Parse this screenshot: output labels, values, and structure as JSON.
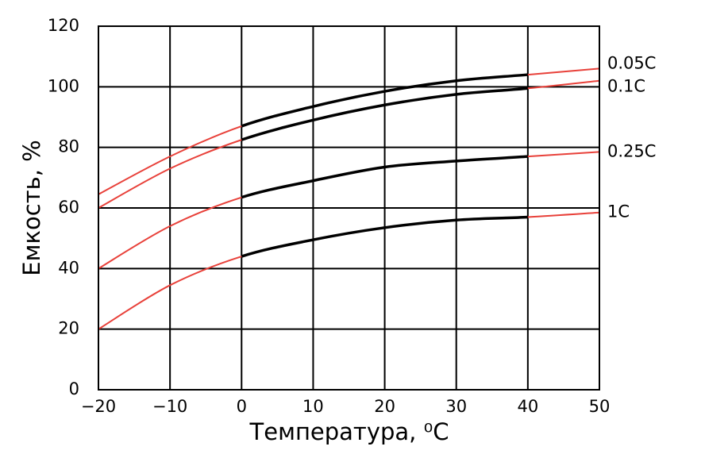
{
  "chart_data": {
    "type": "line",
    "xlabel": "Температура, ⁰C",
    "ylabel": "Емкость, %",
    "x": [
      -20,
      -10,
      0,
      10,
      20,
      30,
      40,
      50
    ],
    "xlim": [
      -20,
      50
    ],
    "xticks": [
      {
        "value": -20,
        "label": "−20"
      },
      {
        "value": -10,
        "label": "−10"
      },
      0,
      10,
      20,
      30,
      40,
      50
    ],
    "ylim": [
      0,
      120
    ],
    "yticks": [
      0,
      20,
      40,
      60,
      80,
      100,
      120
    ],
    "grid": true,
    "series": [
      {
        "name": "0.05C",
        "values": [
          64.5,
          77,
          87,
          93.5,
          98.5,
          102,
          104,
          106
        ],
        "segment_colors": [
          "#e8413a",
          "#e8413a",
          "#000000",
          "#000000",
          "#000000",
          "#000000",
          "#e8413a"
        ]
      },
      {
        "name": "0.1C",
        "values": [
          60,
          73,
          82.5,
          89,
          94,
          97.5,
          99.5,
          102
        ],
        "segment_colors": [
          "#e8413a",
          "#e8413a",
          "#000000",
          "#000000",
          "#000000",
          "#000000",
          "#e8413a"
        ]
      },
      {
        "name": "0.25C",
        "values": [
          40,
          54,
          63.5,
          69,
          73.5,
          75.5,
          77,
          78.5
        ],
        "segment_colors": [
          "#e8413a",
          "#e8413a",
          "#000000",
          "#000000",
          "#000000",
          "#000000",
          "#e8413a"
        ]
      },
      {
        "name": "1C",
        "values": [
          20,
          34.5,
          44,
          49.5,
          53.5,
          56,
          57,
          58.5
        ],
        "segment_colors": [
          "#e8413a",
          "#e8413a",
          "#000000",
          "#000000",
          "#000000",
          "#000000",
          "#e8413a"
        ]
      }
    ]
  }
}
